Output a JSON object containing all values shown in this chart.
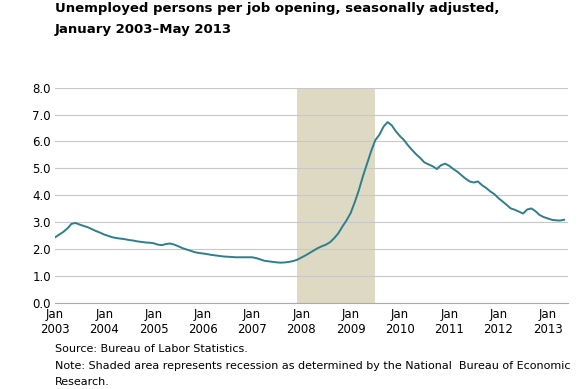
{
  "title_line1": "Unemployed persons per job opening, seasonally adjusted,",
  "title_line2": "January 2003–May 2013",
  "source_text": "Source: Bureau of Labor Statistics.",
  "note_line1": "Note: Shaded area represents recession as determined by the National  Bureau of Economic",
  "note_line2": "Research.",
  "recession_start": 2007.917,
  "recession_end": 2009.5,
  "ylim": [
    0.0,
    8.0
  ],
  "yticks": [
    0.0,
    1.0,
    2.0,
    3.0,
    4.0,
    5.0,
    6.0,
    7.0,
    8.0
  ],
  "xtick_years": [
    2003,
    2004,
    2005,
    2006,
    2007,
    2008,
    2009,
    2010,
    2011,
    2012,
    2013
  ],
  "line_color": "#2e7f8c",
  "recession_color": "#ddd9c3",
  "background_color": "#ffffff",
  "grid_color": "#c8c8c8",
  "data": [
    [
      2003.0,
      2.45
    ],
    [
      2003.083,
      2.55
    ],
    [
      2003.167,
      2.65
    ],
    [
      2003.25,
      2.78
    ],
    [
      2003.333,
      2.95
    ],
    [
      2003.417,
      2.98
    ],
    [
      2003.5,
      2.92
    ],
    [
      2003.583,
      2.87
    ],
    [
      2003.667,
      2.82
    ],
    [
      2003.75,
      2.75
    ],
    [
      2003.833,
      2.68
    ],
    [
      2003.917,
      2.62
    ],
    [
      2004.0,
      2.55
    ],
    [
      2004.083,
      2.5
    ],
    [
      2004.167,
      2.45
    ],
    [
      2004.25,
      2.42
    ],
    [
      2004.333,
      2.4
    ],
    [
      2004.417,
      2.38
    ],
    [
      2004.5,
      2.35
    ],
    [
      2004.583,
      2.33
    ],
    [
      2004.667,
      2.3
    ],
    [
      2004.75,
      2.28
    ],
    [
      2004.833,
      2.26
    ],
    [
      2004.917,
      2.25
    ],
    [
      2005.0,
      2.23
    ],
    [
      2005.083,
      2.18
    ],
    [
      2005.167,
      2.16
    ],
    [
      2005.25,
      2.2
    ],
    [
      2005.333,
      2.22
    ],
    [
      2005.417,
      2.18
    ],
    [
      2005.5,
      2.12
    ],
    [
      2005.583,
      2.05
    ],
    [
      2005.667,
      2.0
    ],
    [
      2005.75,
      1.95
    ],
    [
      2005.833,
      1.9
    ],
    [
      2005.917,
      1.87
    ],
    [
      2006.0,
      1.85
    ],
    [
      2006.083,
      1.83
    ],
    [
      2006.167,
      1.8
    ],
    [
      2006.25,
      1.78
    ],
    [
      2006.333,
      1.76
    ],
    [
      2006.417,
      1.74
    ],
    [
      2006.5,
      1.73
    ],
    [
      2006.583,
      1.72
    ],
    [
      2006.667,
      1.71
    ],
    [
      2006.75,
      1.71
    ],
    [
      2006.833,
      1.71
    ],
    [
      2006.917,
      1.71
    ],
    [
      2007.0,
      1.71
    ],
    [
      2007.083,
      1.68
    ],
    [
      2007.167,
      1.63
    ],
    [
      2007.25,
      1.58
    ],
    [
      2007.333,
      1.56
    ],
    [
      2007.417,
      1.54
    ],
    [
      2007.5,
      1.52
    ],
    [
      2007.583,
      1.51
    ],
    [
      2007.667,
      1.52
    ],
    [
      2007.75,
      1.54
    ],
    [
      2007.833,
      1.57
    ],
    [
      2007.917,
      1.62
    ],
    [
      2008.0,
      1.7
    ],
    [
      2008.083,
      1.78
    ],
    [
      2008.167,
      1.87
    ],
    [
      2008.25,
      1.96
    ],
    [
      2008.333,
      2.05
    ],
    [
      2008.417,
      2.12
    ],
    [
      2008.5,
      2.18
    ],
    [
      2008.583,
      2.27
    ],
    [
      2008.667,
      2.42
    ],
    [
      2008.75,
      2.6
    ],
    [
      2008.833,
      2.85
    ],
    [
      2008.917,
      3.08
    ],
    [
      2009.0,
      3.35
    ],
    [
      2009.083,
      3.75
    ],
    [
      2009.167,
      4.2
    ],
    [
      2009.25,
      4.72
    ],
    [
      2009.333,
      5.18
    ],
    [
      2009.417,
      5.65
    ],
    [
      2009.5,
      6.05
    ],
    [
      2009.583,
      6.25
    ],
    [
      2009.667,
      6.55
    ],
    [
      2009.75,
      6.72
    ],
    [
      2009.833,
      6.6
    ],
    [
      2009.917,
      6.38
    ],
    [
      2010.0,
      6.2
    ],
    [
      2010.083,
      6.05
    ],
    [
      2010.167,
      5.85
    ],
    [
      2010.25,
      5.68
    ],
    [
      2010.333,
      5.52
    ],
    [
      2010.417,
      5.38
    ],
    [
      2010.5,
      5.22
    ],
    [
      2010.583,
      5.15
    ],
    [
      2010.667,
      5.08
    ],
    [
      2010.75,
      4.98
    ],
    [
      2010.833,
      5.12
    ],
    [
      2010.917,
      5.18
    ],
    [
      2011.0,
      5.1
    ],
    [
      2011.083,
      4.98
    ],
    [
      2011.167,
      4.88
    ],
    [
      2011.25,
      4.75
    ],
    [
      2011.333,
      4.62
    ],
    [
      2011.417,
      4.52
    ],
    [
      2011.5,
      4.48
    ],
    [
      2011.583,
      4.52
    ],
    [
      2011.667,
      4.38
    ],
    [
      2011.75,
      4.28
    ],
    [
      2011.833,
      4.15
    ],
    [
      2011.917,
      4.05
    ],
    [
      2012.0,
      3.9
    ],
    [
      2012.083,
      3.78
    ],
    [
      2012.167,
      3.65
    ],
    [
      2012.25,
      3.52
    ],
    [
      2012.333,
      3.47
    ],
    [
      2012.417,
      3.4
    ],
    [
      2012.5,
      3.33
    ],
    [
      2012.583,
      3.48
    ],
    [
      2012.667,
      3.52
    ],
    [
      2012.75,
      3.42
    ],
    [
      2012.833,
      3.28
    ],
    [
      2012.917,
      3.2
    ],
    [
      2013.0,
      3.15
    ],
    [
      2013.083,
      3.1
    ],
    [
      2013.167,
      3.08
    ],
    [
      2013.25,
      3.07
    ],
    [
      2013.333,
      3.1
    ]
  ]
}
